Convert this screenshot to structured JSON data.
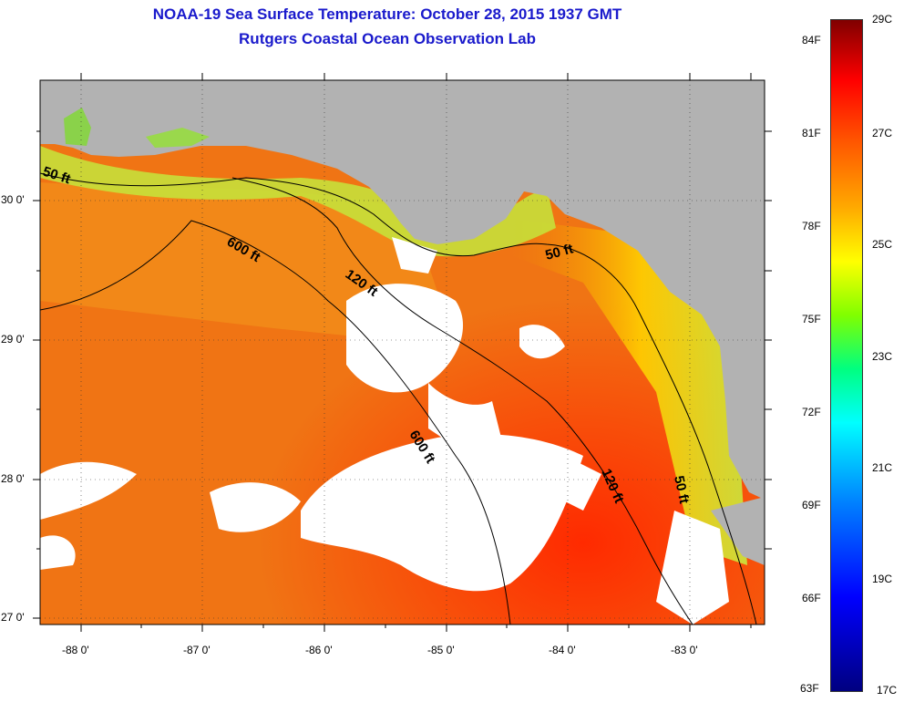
{
  "title": {
    "line1": "NOAA-19 Sea Surface Temperature:  October 28, 2015 1937 GMT",
    "line2": "Rutgers Coastal Ocean Observation Lab"
  },
  "map": {
    "lon_labels": [
      "-88 0'",
      "-87 0'",
      "-86 0'",
      "-85 0'",
      "-84 0'",
      "-83 0'"
    ],
    "lat_labels": [
      "30 0'",
      "29 0'",
      "28 0'",
      "27 0'"
    ],
    "isobaths": [
      "50 ft",
      "600 ft",
      "120 ft",
      "50 ft",
      "600 ft",
      "120 ft",
      "50 ft"
    ],
    "colors": {
      "land": "#b2b2b2",
      "cloud": "#ffffff",
      "warm_water": "#f07010",
      "coastal_water": "#c8e040"
    }
  },
  "colorbar": {
    "fahrenheit": [
      "84F",
      "81F",
      "78F",
      "75F",
      "72F",
      "69F",
      "66F",
      "63F"
    ],
    "celsius": [
      "29C",
      "27C",
      "25C",
      "23C",
      "21C",
      "19C",
      "17C"
    ]
  }
}
